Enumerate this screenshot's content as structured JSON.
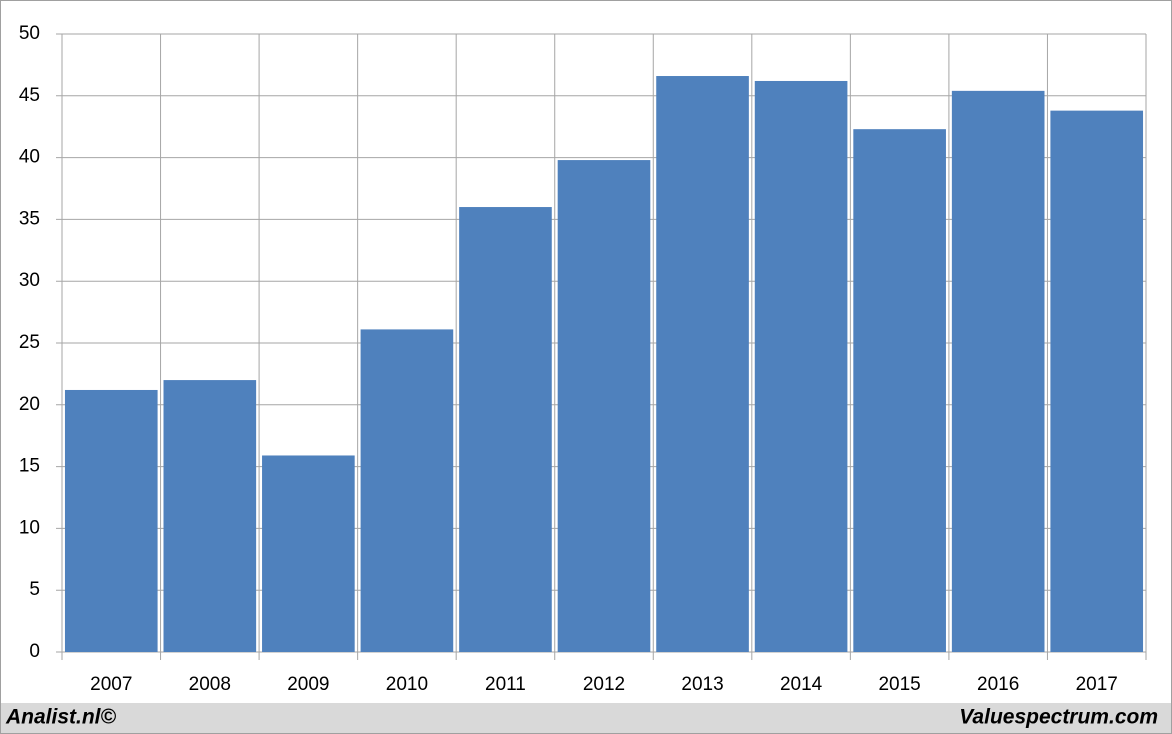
{
  "chart_data": {
    "type": "bar",
    "categories": [
      "2007",
      "2008",
      "2009",
      "2010",
      "2011",
      "2012",
      "2013",
      "2014",
      "2015",
      "2016",
      "2017"
    ],
    "values": [
      21.2,
      22.0,
      15.9,
      26.1,
      36.0,
      39.8,
      46.6,
      46.2,
      42.3,
      45.4,
      43.8
    ],
    "color": "#4f81bd",
    "ylim": [
      0,
      50
    ],
    "yticks": [
      0,
      5,
      10,
      15,
      20,
      25,
      30,
      35,
      40,
      45,
      50
    ],
    "grid": true,
    "footer_left": "Analist.nl©",
    "footer_right": "Valuespectrum.com"
  }
}
